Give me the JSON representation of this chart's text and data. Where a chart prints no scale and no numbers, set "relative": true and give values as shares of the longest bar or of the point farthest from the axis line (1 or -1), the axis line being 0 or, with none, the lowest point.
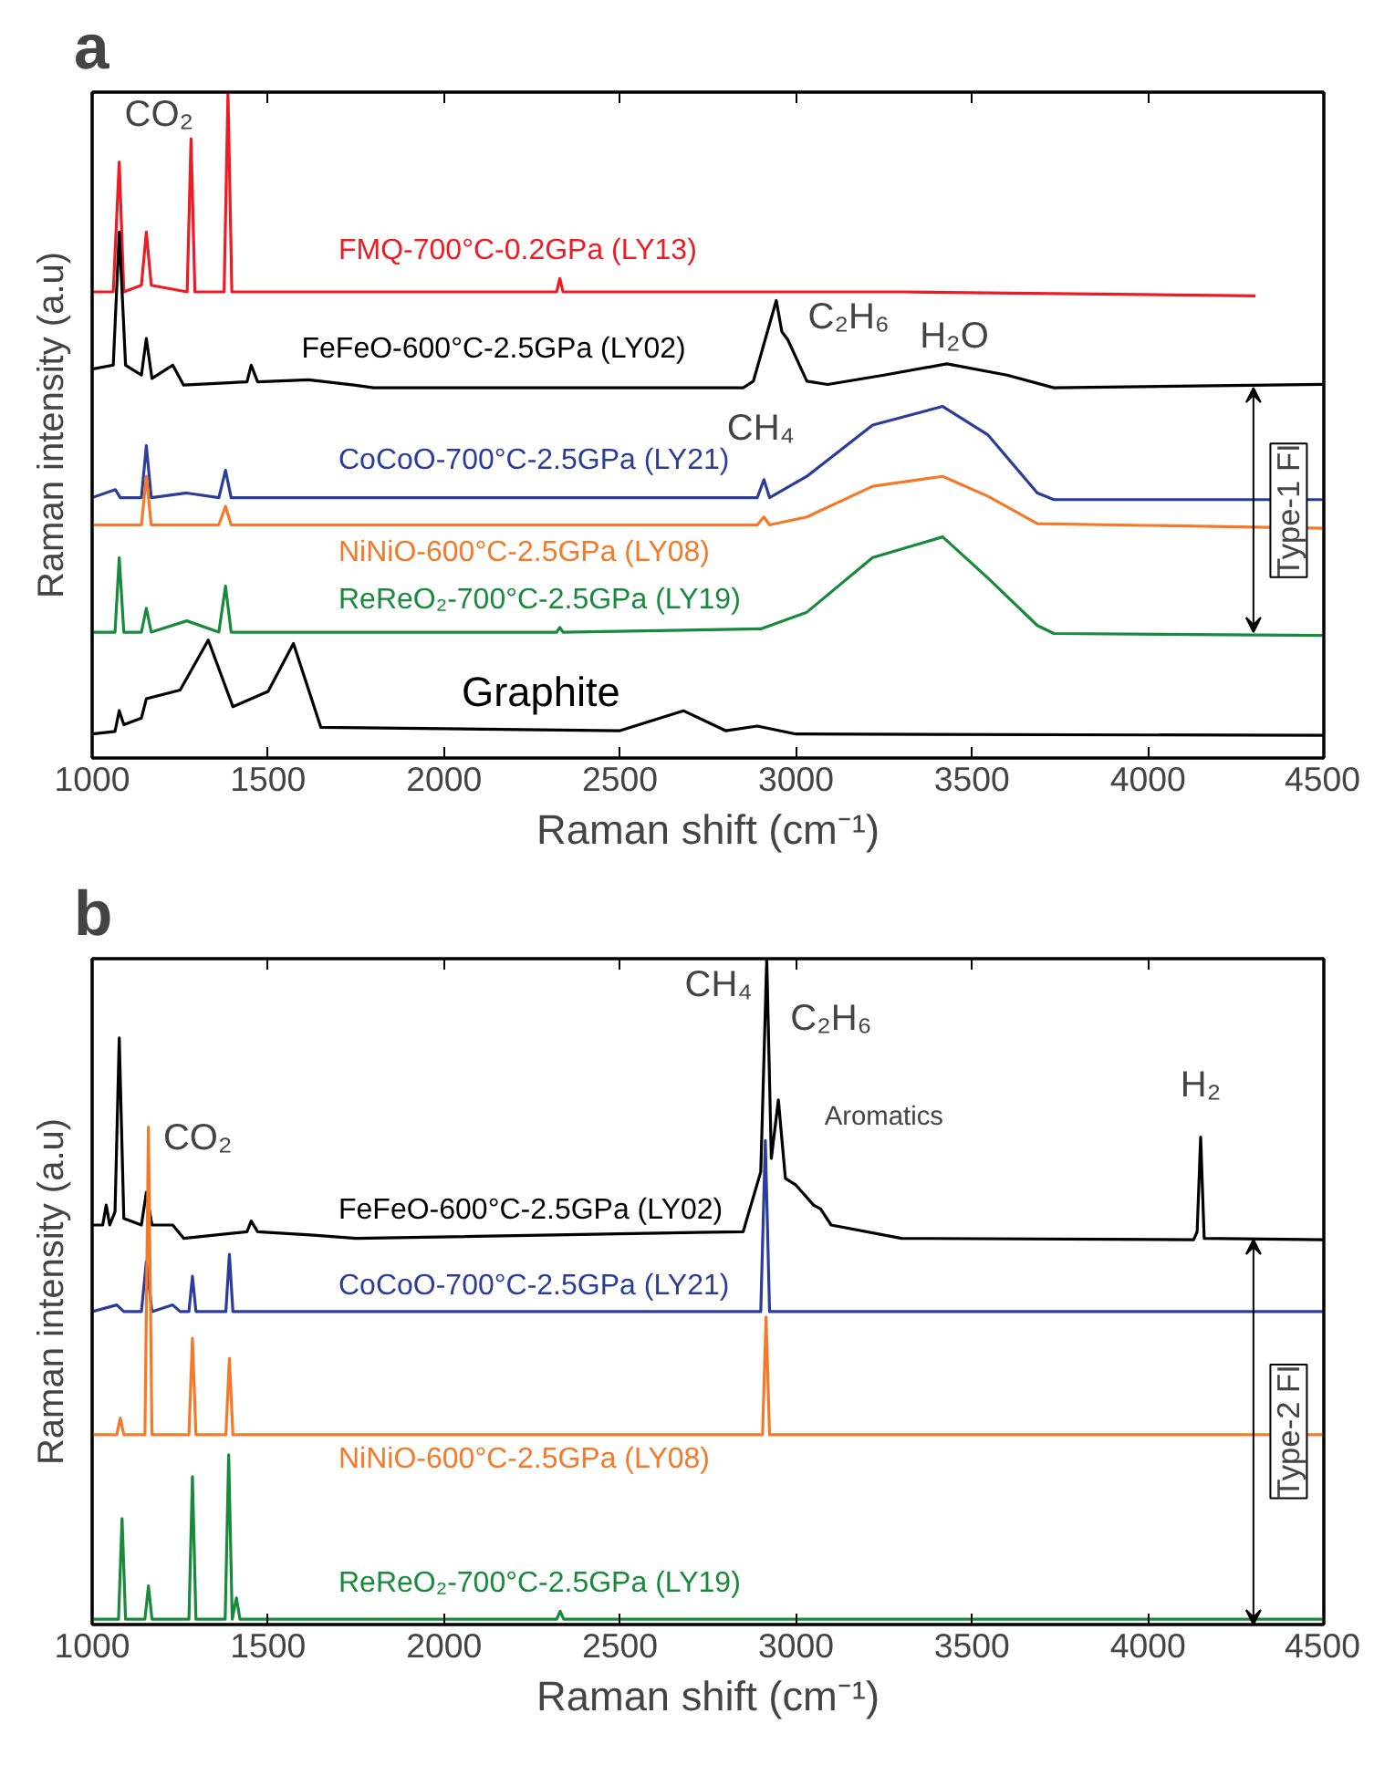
{
  "chart_data": [
    {
      "type": "line",
      "title": "a",
      "xlabel": "Raman shift (cm⁻¹)",
      "ylabel": "Raman intensity (a.u)",
      "relative": true,
      "xlim": [
        1000,
        4500
      ],
      "xticks": [
        1000,
        1500,
        2000,
        2500,
        3000,
        3500,
        4000,
        4500
      ],
      "tick_labels": "x",
      "grid": false,
      "marker": "none",
      "line_style": "solid",
      "series": [
        {
          "name": "FMQ-700°C-0.2GPa (LY13)",
          "color": "#ed1c24",
          "x": [
            1000,
            1060,
            1077,
            1090,
            1140,
            1154,
            1168,
            1270,
            1281,
            1292,
            1375,
            1386,
            1397,
            1410,
            2320,
            2329,
            2338,
            3300,
            4306
          ],
          "values": [
            0.7,
            0.7,
            0.895,
            0.7,
            0.71,
            0.79,
            0.71,
            0.7,
            0.93,
            0.7,
            0.7,
            1.0,
            0.7,
            0.7,
            0.7,
            0.72,
            0.7,
            0.7,
            0.694
          ]
        },
        {
          "name": "FeFeO-600°C-2.5GPa (LY02)",
          "color": "#000000",
          "x": [
            1000,
            1060,
            1077,
            1095,
            1140,
            1154,
            1170,
            1229,
            1260,
            1440,
            1452,
            1470,
            1615,
            1744,
            1800,
            2850,
            2879,
            2944,
            2960,
            2977,
            3031,
            3090,
            3250,
            3429,
            3600,
            3733,
            4500
          ],
          "values": [
            0.584,
            0.59,
            0.79,
            0.59,
            0.575,
            0.63,
            0.57,
            0.59,
            0.56,
            0.565,
            0.59,
            0.565,
            0.568,
            0.56,
            0.556,
            0.556,
            0.566,
            0.687,
            0.64,
            0.628,
            0.566,
            0.561,
            0.575,
            0.592,
            0.575,
            0.556,
            0.561
          ]
        },
        {
          "name": "CoCoO-700°C-2.5GPa (LY21)",
          "color": "#2b3c9b",
          "x": [
            1000,
            1066,
            1080,
            1140,
            1154,
            1168,
            1269,
            1360,
            1379,
            1395,
            2890,
            2909,
            2925,
            3031,
            3218,
            3417,
            3546,
            3686,
            3733,
            4500
          ],
          "values": [
            0.391,
            0.403,
            0.391,
            0.391,
            0.469,
            0.391,
            0.398,
            0.391,
            0.432,
            0.391,
            0.391,
            0.418,
            0.391,
            0.423,
            0.5,
            0.528,
            0.485,
            0.398,
            0.388,
            0.388
          ]
        },
        {
          "name": "NiNiO-600°C-2.5GPa (LY08)",
          "color": "#f47a2a",
          "x": [
            1000,
            1140,
            1154,
            1168,
            1360,
            1379,
            1395,
            2890,
            2909,
            2925,
            3031,
            3218,
            3417,
            3546,
            3686,
            4500
          ],
          "values": [
            0.35,
            0.35,
            0.423,
            0.35,
            0.35,
            0.378,
            0.35,
            0.35,
            0.362,
            0.35,
            0.362,
            0.408,
            0.423,
            0.393,
            0.352,
            0.345
          ]
        },
        {
          "name": "ReReO₂-700°C-2.5GPa (LY19)",
          "color": "#178a3c",
          "x": [
            1000,
            1065,
            1077,
            1090,
            1140,
            1154,
            1168,
            1269,
            1360,
            1379,
            1395,
            2320,
            2329,
            2338,
            2900,
            3031,
            3218,
            3417,
            3546,
            3686,
            3733,
            4500
          ],
          "values": [
            0.189,
            0.189,
            0.301,
            0.189,
            0.189,
            0.225,
            0.189,
            0.206,
            0.189,
            0.258,
            0.189,
            0.189,
            0.196,
            0.189,
            0.194,
            0.219,
            0.301,
            0.332,
            0.27,
            0.199,
            0.187,
            0.184
          ]
        },
        {
          "name": "Graphite",
          "color": "#000000",
          "x": [
            1000,
            1065,
            1077,
            1090,
            1140,
            1154,
            1250,
            1330,
            1400,
            1500,
            1572,
            1650,
            2500,
            2680,
            2800,
            2890,
            3000,
            4500
          ],
          "values": [
            0.036,
            0.04,
            0.071,
            0.05,
            0.06,
            0.089,
            0.102,
            0.177,
            0.077,
            0.1,
            0.172,
            0.046,
            0.041,
            0.071,
            0.041,
            0.048,
            0.036,
            0.034
          ]
        }
      ],
      "annotations": [
        "CO₂",
        "C₂H₆",
        "CH₄",
        "H₂O",
        "Type-1 FI"
      ]
    },
    {
      "type": "line",
      "title": "b",
      "xlabel": "Raman shift (cm⁻¹)",
      "ylabel": "Raman intensity (a.u)",
      "relative": true,
      "xlim": [
        1000,
        4500
      ],
      "xticks": [
        1000,
        1500,
        2000,
        2500,
        3000,
        3500,
        4000,
        4500
      ],
      "tick_labels": "x",
      "grid": false,
      "marker": "none",
      "line_style": "solid",
      "series": [
        {
          "name": "FeFeO-600°C-2.5GPa (LY02)",
          "color": "#000000",
          "x": [
            1000,
            1030,
            1040,
            1050,
            1065,
            1077,
            1090,
            1140,
            1154,
            1170,
            1229,
            1260,
            1440,
            1452,
            1470,
            1620,
            1750,
            2850,
            2900,
            2917,
            2930,
            2950,
            2970,
            3000,
            3050,
            3070,
            3100,
            3300,
            4130,
            4140,
            4150,
            4160,
            4500
          ],
          "values": [
            0.6,
            0.6,
            0.63,
            0.6,
            0.62,
            0.881,
            0.61,
            0.6,
            0.649,
            0.6,
            0.6,
            0.58,
            0.59,
            0.606,
            0.59,
            0.585,
            0.58,
            0.59,
            0.68,
            1.0,
            0.7,
            0.788,
            0.67,
            0.66,
            0.63,
            0.624,
            0.6,
            0.58,
            0.578,
            0.59,
            0.732,
            0.58,
            0.578
          ]
        },
        {
          "name": "CoCoO-700°C-2.5GPa (LY21)",
          "color": "#2b3c9b",
          "x": [
            1000,
            1070,
            1090,
            1140,
            1154,
            1170,
            1229,
            1250,
            1275,
            1285,
            1295,
            1380,
            1390,
            1400,
            2900,
            2913,
            2925,
            4500
          ],
          "values": [
            0.47,
            0.48,
            0.47,
            0.47,
            0.545,
            0.47,
            0.48,
            0.47,
            0.47,
            0.523,
            0.47,
            0.47,
            0.556,
            0.47,
            0.47,
            0.727,
            0.47,
            0.47
          ]
        },
        {
          "name": "NiNiO-600°C-2.5GPa (LY08)",
          "color": "#f47a2a",
          "x": [
            1000,
            1070,
            1080,
            1090,
            1150,
            1160,
            1170,
            1275,
            1285,
            1295,
            1380,
            1390,
            1400,
            2905,
            2915,
            2925,
            4500
          ],
          "values": [
            0.285,
            0.285,
            0.31,
            0.285,
            0.285,
            0.747,
            0.285,
            0.285,
            0.43,
            0.285,
            0.285,
            0.4,
            0.285,
            0.285,
            0.462,
            0.285,
            0.285
          ]
        },
        {
          "name": "ReReO₂-700°C-2.5GPa (LY19)",
          "color": "#178a3c",
          "x": [
            1000,
            1075,
            1085,
            1095,
            1150,
            1160,
            1170,
            1275,
            1285,
            1295,
            1378,
            1388,
            1398,
            1410,
            1420,
            2320,
            2330,
            2340,
            4500
          ],
          "values": [
            0.008,
            0.008,
            0.159,
            0.008,
            0.008,
            0.058,
            0.008,
            0.008,
            0.222,
            0.008,
            0.008,
            0.255,
            0.008,
            0.04,
            0.008,
            0.008,
            0.02,
            0.008,
            0.008
          ]
        }
      ],
      "annotations": [
        "CO₂",
        "CH₄",
        "C₂H₆",
        "Aromatics",
        "H₂",
        "Type-2 FI"
      ]
    }
  ]
}
